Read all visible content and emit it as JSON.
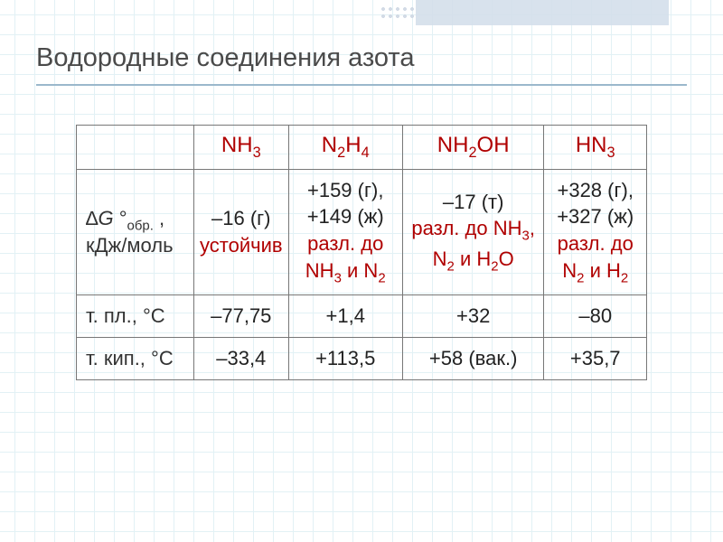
{
  "title": "Водородные соединения азота",
  "table": {
    "corner": "",
    "columns": [
      {
        "formula_html": "NH<sub>3</sub>"
      },
      {
        "formula_html": "N<sub>2</sub>H<sub>4</sub>"
      },
      {
        "formula_html": "NH<sub>2</sub>OH"
      },
      {
        "formula_html": "HN<sub>3</sub>"
      }
    ],
    "rows": [
      {
        "head_html": "∆<i>G</i> °<sub>обр.</sub> , кДж/моль",
        "cells": [
          {
            "black": "–16 (г)",
            "red_html": "устойчив"
          },
          {
            "black": "+159 (г),<br>+149 (ж)",
            "red_html": "разл. до NH<sub>3</sub> и N<sub>2</sub>"
          },
          {
            "black": "–17 (т)",
            "red_html": "разл. до NH<sub>3</sub>, N<sub>2</sub> и H<sub>2</sub>O"
          },
          {
            "black": "+328 (г),<br>+327 (ж)",
            "red_html": "разл. до N<sub>2</sub> и H<sub>2</sub>"
          }
        ]
      },
      {
        "head_html": "т. пл., °С",
        "cells": [
          {
            "black": "–77,75",
            "red_html": ""
          },
          {
            "black": "+1,4",
            "red_html": ""
          },
          {
            "black": "+32",
            "red_html": ""
          },
          {
            "black": "–80",
            "red_html": ""
          }
        ]
      },
      {
        "head_html": "т. кип., °С",
        "cells": [
          {
            "black": "–33,4",
            "red_html": ""
          },
          {
            "black": "+113,5",
            "red_html": ""
          },
          {
            "black": "+58 (вак.)",
            "red_html": ""
          },
          {
            "black": "+35,7",
            "red_html": ""
          }
        ]
      }
    ]
  },
  "style": {
    "title_color": "#4a4a4a",
    "title_fontsize": 29,
    "header_color": "#b00000",
    "stable_color": "#b00000",
    "decomp_color": "#b00000",
    "text_color": "#222222",
    "border_color": "#777777",
    "grid_color": "#d0e8f0",
    "grid_size": 22,
    "cell_fontsize": 22,
    "deco_color": "#d4dfeb",
    "rule_color": "#9bb8cc"
  }
}
